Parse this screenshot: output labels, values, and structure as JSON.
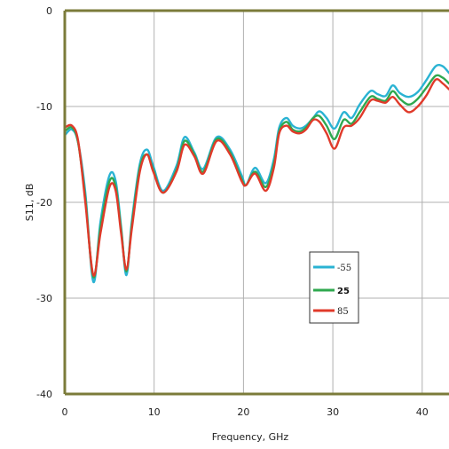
{
  "chart_data": {
    "type": "line",
    "title": "",
    "xlabel": "Frequency, GHz",
    "ylabel": "S11, dB",
    "xlim": [
      0,
      43
    ],
    "ylim": [
      -40,
      0
    ],
    "xticks": [
      0,
      10,
      20,
      30,
      40
    ],
    "yticks": [
      0,
      -10,
      -20,
      -30,
      -40
    ],
    "grid": true,
    "legend_position": "center-right",
    "colors": {
      "frame": "#7b7b3a",
      "grid": "#b0b0b0",
      "background": "#ffffff"
    },
    "series": [
      {
        "name": "-55",
        "color": "#2ab3d3",
        "points": [
          [
            0,
            -13.0
          ],
          [
            0.8,
            -12.4
          ],
          [
            1.5,
            -13.8
          ],
          [
            2.3,
            -19.0
          ],
          [
            3.2,
            -28.3
          ],
          [
            4.0,
            -22.0
          ],
          [
            5.0,
            -17.2
          ],
          [
            5.7,
            -17.8
          ],
          [
            6.3,
            -22.5
          ],
          [
            6.9,
            -27.6
          ],
          [
            7.5,
            -22.0
          ],
          [
            8.4,
            -16.0
          ],
          [
            9.2,
            -14.5
          ],
          [
            9.9,
            -16.2
          ],
          [
            11.0,
            -18.8
          ],
          [
            12.5,
            -16.2
          ],
          [
            13.4,
            -13.2
          ],
          [
            14.5,
            -14.8
          ],
          [
            15.5,
            -16.5
          ],
          [
            17.0,
            -13.2
          ],
          [
            18.5,
            -14.5
          ],
          [
            19.8,
            -17.2
          ],
          [
            20.3,
            -18.2
          ],
          [
            21.3,
            -16.4
          ],
          [
            22.5,
            -18.0
          ],
          [
            23.4,
            -15.5
          ],
          [
            24.0,
            -12.2
          ],
          [
            24.8,
            -11.2
          ],
          [
            25.5,
            -12.0
          ],
          [
            26.3,
            -12.3
          ],
          [
            27.0,
            -12.0
          ],
          [
            27.8,
            -11.2
          ],
          [
            28.5,
            -10.5
          ],
          [
            29.3,
            -11.2
          ],
          [
            30.2,
            -12.3
          ],
          [
            31.2,
            -10.6
          ],
          [
            32.1,
            -11.2
          ],
          [
            33.0,
            -9.8
          ],
          [
            34.2,
            -8.4
          ],
          [
            35.0,
            -8.7
          ],
          [
            35.9,
            -8.9
          ],
          [
            36.7,
            -7.8
          ],
          [
            37.5,
            -8.6
          ],
          [
            38.5,
            -9.0
          ],
          [
            39.5,
            -8.5
          ],
          [
            40.5,
            -7.2
          ],
          [
            41.5,
            -5.8
          ],
          [
            42.3,
            -5.8
          ],
          [
            43.0,
            -6.5
          ]
        ]
      },
      {
        "name": "25",
        "color": "#2fa84f",
        "points": [
          [
            0,
            -12.6
          ],
          [
            0.8,
            -12.2
          ],
          [
            1.5,
            -13.8
          ],
          [
            2.3,
            -19.6
          ],
          [
            3.2,
            -27.8
          ],
          [
            4.0,
            -22.6
          ],
          [
            5.0,
            -17.8
          ],
          [
            5.7,
            -18.4
          ],
          [
            6.3,
            -22.8
          ],
          [
            6.9,
            -27.2
          ],
          [
            7.5,
            -22.4
          ],
          [
            8.4,
            -16.4
          ],
          [
            9.2,
            -15.0
          ],
          [
            9.9,
            -16.6
          ],
          [
            11.0,
            -19.0
          ],
          [
            12.5,
            -16.6
          ],
          [
            13.4,
            -13.6
          ],
          [
            14.5,
            -15.0
          ],
          [
            15.5,
            -16.8
          ],
          [
            17.0,
            -13.4
          ],
          [
            18.5,
            -14.8
          ],
          [
            19.8,
            -17.6
          ],
          [
            20.3,
            -18.2
          ],
          [
            21.3,
            -16.8
          ],
          [
            22.5,
            -18.4
          ],
          [
            23.4,
            -16.0
          ],
          [
            24.0,
            -12.6
          ],
          [
            24.8,
            -11.6
          ],
          [
            25.5,
            -12.4
          ],
          [
            26.3,
            -12.6
          ],
          [
            27.0,
            -12.2
          ],
          [
            27.8,
            -11.2
          ],
          [
            28.5,
            -11.0
          ],
          [
            29.3,
            -12.0
          ],
          [
            30.2,
            -13.4
          ],
          [
            31.2,
            -11.4
          ],
          [
            32.1,
            -11.8
          ],
          [
            33.0,
            -10.6
          ],
          [
            34.2,
            -9.0
          ],
          [
            35.0,
            -9.2
          ],
          [
            35.9,
            -9.4
          ],
          [
            36.7,
            -8.4
          ],
          [
            37.5,
            -9.2
          ],
          [
            38.5,
            -9.8
          ],
          [
            39.5,
            -9.2
          ],
          [
            40.5,
            -8.0
          ],
          [
            41.5,
            -6.8
          ],
          [
            42.3,
            -7.0
          ],
          [
            43.0,
            -7.6
          ]
        ]
      },
      {
        "name": "85",
        "color": "#e03a2a",
        "points": [
          [
            0,
            -12.2
          ],
          [
            0.8,
            -12.0
          ],
          [
            1.5,
            -13.6
          ],
          [
            2.3,
            -20.0
          ],
          [
            3.2,
            -27.6
          ],
          [
            4.0,
            -23.2
          ],
          [
            5.0,
            -18.4
          ],
          [
            5.7,
            -18.8
          ],
          [
            6.3,
            -23.2
          ],
          [
            6.9,
            -27.0
          ],
          [
            7.5,
            -22.8
          ],
          [
            8.4,
            -16.8
          ],
          [
            9.2,
            -15.0
          ],
          [
            9.9,
            -16.8
          ],
          [
            11.0,
            -19.0
          ],
          [
            12.5,
            -16.8
          ],
          [
            13.4,
            -14.0
          ],
          [
            14.5,
            -15.2
          ],
          [
            15.5,
            -17.0
          ],
          [
            17.0,
            -13.6
          ],
          [
            18.5,
            -15.0
          ],
          [
            19.8,
            -17.8
          ],
          [
            20.3,
            -18.2
          ],
          [
            21.3,
            -17.0
          ],
          [
            22.5,
            -18.8
          ],
          [
            23.4,
            -16.4
          ],
          [
            24.0,
            -12.8
          ],
          [
            24.8,
            -12.0
          ],
          [
            25.5,
            -12.6
          ],
          [
            26.3,
            -12.8
          ],
          [
            27.0,
            -12.4
          ],
          [
            27.8,
            -11.4
          ],
          [
            28.5,
            -11.6
          ],
          [
            29.3,
            -12.8
          ],
          [
            30.2,
            -14.4
          ],
          [
            31.2,
            -12.2
          ],
          [
            32.1,
            -12.0
          ],
          [
            33.0,
            -11.2
          ],
          [
            34.2,
            -9.4
          ],
          [
            35.0,
            -9.4
          ],
          [
            35.9,
            -9.6
          ],
          [
            36.7,
            -9.0
          ],
          [
            37.5,
            -9.8
          ],
          [
            38.5,
            -10.6
          ],
          [
            39.5,
            -10.0
          ],
          [
            40.5,
            -8.8
          ],
          [
            41.5,
            -7.2
          ],
          [
            42.3,
            -7.6
          ],
          [
            43.0,
            -8.2
          ]
        ]
      }
    ]
  }
}
